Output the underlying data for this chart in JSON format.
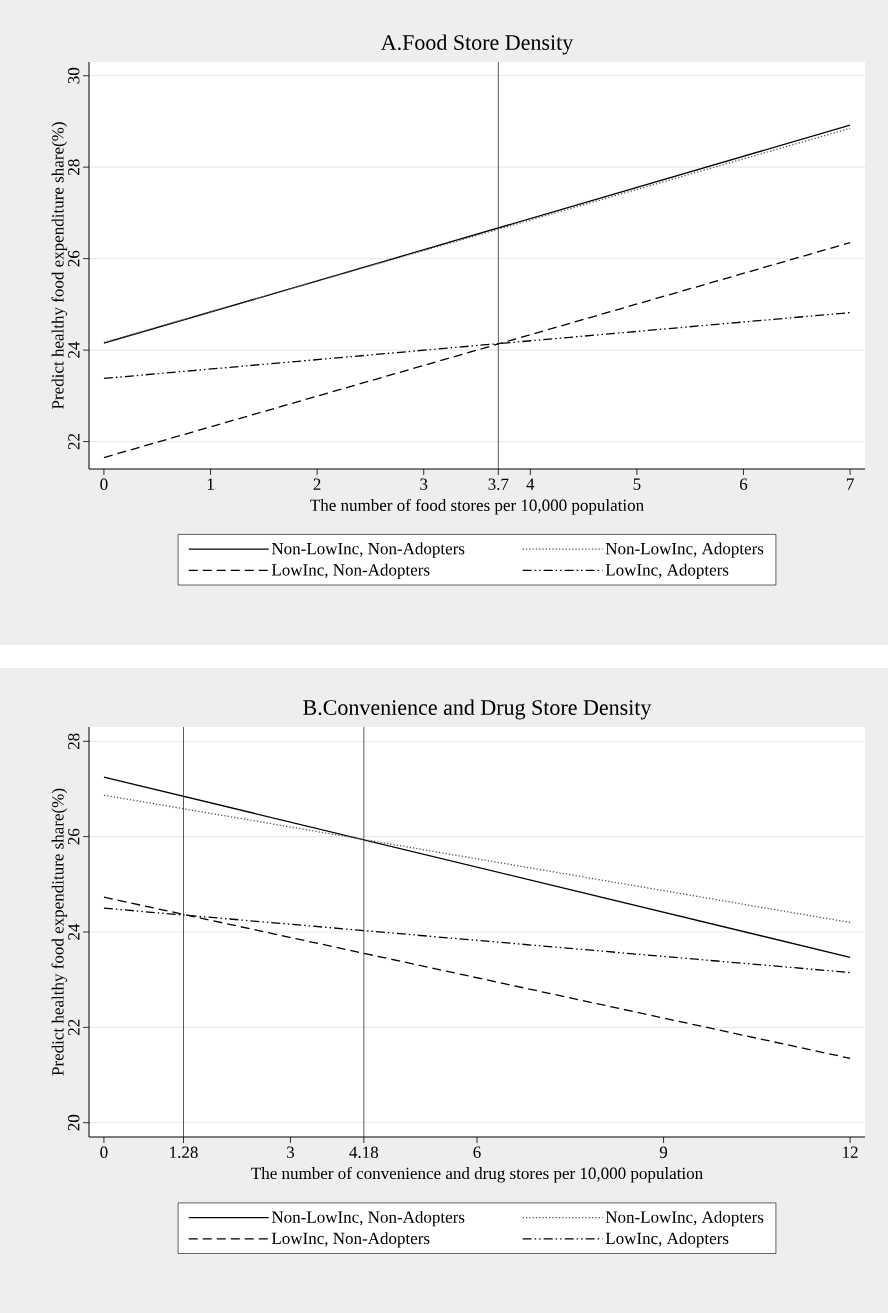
{
  "chart_data": [
    {
      "type": "line",
      "title": "A.Food Store Density",
      "xlabel": "The number of food stores per 10,000 population",
      "ylabel": "Predict healthy food expenditure share(%)",
      "x": [
        0,
        7
      ],
      "series": [
        {
          "name": "Non-LowInc, Non-Adopters",
          "color": "#000000",
          "line_style": "solid",
          "values": [
            24.15,
            28.92
          ]
        },
        {
          "name": "Non-LowInc, Adopters",
          "color": "#555555",
          "line_style": "dotted",
          "values": [
            24.17,
            28.85
          ]
        },
        {
          "name": "LowInc, Non-Adopters",
          "color": "#000000",
          "line_style": "dashed",
          "values": [
            21.65,
            26.35
          ]
        },
        {
          "name": "LowInc, Adopters",
          "color": "#000000",
          "line_style": "dashdot",
          "values": [
            23.38,
            24.82
          ]
        }
      ],
      "xlim": [
        -0.14,
        7.14
      ],
      "ylim": [
        21.4,
        30.3
      ],
      "xticks": [
        0,
        1,
        2,
        3,
        3.7,
        4,
        5,
        6,
        7
      ],
      "yticks": [
        22,
        24,
        26,
        28,
        30
      ],
      "ref_lines": [
        {
          "axis": "x",
          "value": 3.7,
          "color": "#333333"
        }
      ],
      "grid": "y",
      "legend": "bottom"
    },
    {
      "type": "line",
      "title": "B.Convenience and Drug Store Density",
      "xlabel": "The number of convenience and drug stores per 10,000 population",
      "ylabel": "Predict healthy food expenditure share(%)",
      "x": [
        0,
        12
      ],
      "series": [
        {
          "name": "Non-LowInc, Non-Adopters",
          "color": "#000000",
          "line_style": "solid",
          "values": [
            27.25,
            23.47
          ]
        },
        {
          "name": "Non-LowInc, Adopters",
          "color": "#555555",
          "line_style": "dotted",
          "values": [
            26.87,
            24.2
          ]
        },
        {
          "name": "LowInc, Non-Adopters",
          "color": "#000000",
          "line_style": "dashed",
          "values": [
            24.73,
            21.35
          ]
        },
        {
          "name": "LowInc, Adopters",
          "color": "#000000",
          "line_style": "dashdot",
          "values": [
            24.5,
            23.15
          ]
        }
      ],
      "xlim": [
        -0.24,
        12.24
      ],
      "ylim": [
        19.7,
        28.3
      ],
      "xticks": [
        0,
        1.28,
        3,
        4.18,
        6,
        9,
        12
      ],
      "yticks": [
        20,
        22,
        24,
        26,
        28
      ],
      "ref_lines": [
        {
          "axis": "x",
          "value": 1.28,
          "color": "#333333"
        },
        {
          "axis": "x",
          "value": 4.18,
          "color": "#333333"
        }
      ],
      "grid": "y",
      "legend": "bottom"
    }
  ]
}
